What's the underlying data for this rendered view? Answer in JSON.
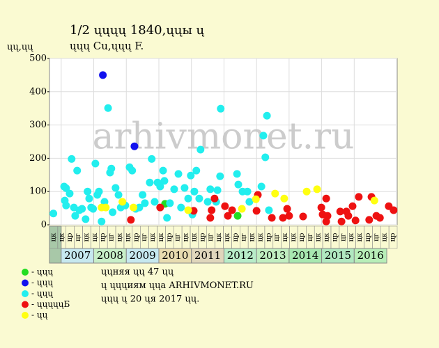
{
  "chart_data": {
    "type": "scatter",
    "title": "1/2 ųųųų 1840,ųųы ų",
    "subtitle": "ųųų Cu,ųųų F.",
    "y_label": "ųų,ųų",
    "watermark": "arhivmonet.ru",
    "xlim": [
      2006.64,
      2017.32
    ],
    "ylim": [
      0,
      500
    ],
    "yticks": [
      0,
      100,
      200,
      300,
      400,
      500
    ],
    "grid": true,
    "years": [
      {
        "label": "2007",
        "value": 2007,
        "color": "#c6e8ef"
      },
      {
        "label": "2008",
        "value": 2008,
        "color": "#c8efc8"
      },
      {
        "label": "2009",
        "value": 2009,
        "color": "#c6e8ef"
      },
      {
        "label": "2010",
        "value": 2010,
        "color": "#e8dcb0"
      },
      {
        "label": "2011",
        "value": 2011,
        "color": "#e0d6bc"
      },
      {
        "label": "2012",
        "value": 2012,
        "color": "#b8ecc8"
      },
      {
        "label": "2013",
        "value": 2013,
        "color": "#c0eec0"
      },
      {
        "label": "2014",
        "value": 2014,
        "color": "#a8e8b0"
      },
      {
        "label": "2015",
        "value": 2015,
        "color": "#b0e8c0"
      },
      {
        "label": "2016",
        "value": 2016,
        "color": "#b8eeb8"
      }
    ],
    "period_labels": [
      "цк",
      "цк",
      "цр",
      "цг",
      "цк",
      "цк",
      "цр",
      "цг",
      "цк",
      "цк",
      "цр",
      "цг",
      "цк",
      "цк",
      "цр",
      "цг",
      "цк",
      "цк",
      "цр",
      "цг",
      "цк",
      "цк",
      "цр",
      "цг",
      "цк",
      "цк",
      "цр",
      "цг",
      "цк",
      "цк",
      "цр",
      "цг",
      "цк",
      "цк",
      "цр",
      "цг",
      "цк",
      "цк",
      "цр",
      "цг",
      "цк",
      "цр"
    ],
    "series": [
      {
        "name": "- ųųų",
        "color": "#22dd22",
        "x": [
          2010.19,
          2012.42
        ],
        "values": [
          63,
          27
        ]
      },
      {
        "name": "- ųųų",
        "color": "#1111ee",
        "x": [
          2008.28,
          2009.25
        ],
        "values": [
          450,
          236
        ]
      },
      {
        "name": "- ųųų",
        "color": "#22eeee",
        "x": [
          2006.76,
          2007.09,
          2007.15,
          2007.26,
          2007.11,
          2007.15,
          2007.32,
          2007.39,
          2007.43,
          2007.49,
          2007.56,
          2007.64,
          2007.75,
          2007.81,
          2007.86,
          2007.92,
          2007.98,
          2008.05,
          2008.11,
          2008.16,
          2008.24,
          2008.33,
          2008.44,
          2008.5,
          2008.54,
          2008.58,
          2008.67,
          2008.76,
          2008.83,
          2008.97,
          2009.1,
          2009.18,
          2009.29,
          2009.4,
          2009.5,
          2009.57,
          2009.72,
          2009.78,
          2009.87,
          2009.96,
          2010.04,
          2010.13,
          2010.17,
          2010.25,
          2010.34,
          2010.47,
          2010.6,
          2010.68,
          2010.79,
          2010.9,
          2010.98,
          2011.03,
          2011.09,
          2011.15,
          2011.24,
          2011.28,
          2011.5,
          2011.58,
          2011.76,
          2011.8,
          2011.88,
          2011.9,
          2012.4,
          2012.44,
          2012.57,
          2012.72,
          2012.78,
          2013.15,
          2013.21,
          2013.27,
          2013.32,
          2013.38
        ],
        "values": [
          34,
          115,
          110,
          94,
          73,
          58,
          198,
          52,
          27,
          163,
          44,
          48,
          17,
          100,
          79,
          52,
          48,
          184,
          90,
          100,
          10,
          69,
          351,
          157,
          169,
          38,
          111,
          90,
          52,
          58,
          173,
          163,
          48,
          52,
          90,
          65,
          127,
          198,
          69,
          127,
          115,
          163,
          132,
          21,
          65,
          107,
          153,
          52,
          111,
          79,
          148,
          31,
          100,
          163,
          79,
          226,
          69,
          107,
          69,
          104,
          146,
          349,
          153,
          121,
          100,
          100,
          69,
          115,
          268,
          203,
          328,
          44
        ]
      },
      {
        "name": "- ųųųųųБ",
        "color": "#ee1111",
        "x": [
          2009.14,
          2010.04,
          2011.07,
          2011.58,
          2011.62,
          2011.71,
          2012.03,
          2012.12,
          2012.25,
          2013.0,
          2013.04,
          2013.47,
          2013.81,
          2013.94,
          2014.0,
          2014.43,
          2014.99,
          2015.03,
          2015.14,
          2015.18,
          2015.14,
          2015.57,
          2015.61,
          2015.76,
          2015.82,
          2015.95,
          2016.04,
          2016.14,
          2016.46,
          2016.53,
          2016.68,
          2016.79,
          2017.06,
          2017.21
        ],
        "values": [
          15,
          52,
          42,
          21,
          44,
          79,
          56,
          27,
          44,
          42,
          90,
          21,
          21,
          48,
          27,
          25,
          52,
          31,
          79,
          27,
          10,
          40,
          10,
          40,
          27,
          56,
          13,
          84,
          15,
          84,
          27,
          21,
          56,
          44
        ]
      },
      {
        "name": "- ųų",
        "color": "#ffff11",
        "x": [
          2008.24,
          2008.37,
          2008.88,
          2009.22,
          2010.9,
          2012.55,
          2012.98,
          2013.57,
          2013.85,
          2014.54,
          2014.86,
          2016.62
        ],
        "values": [
          52,
          52,
          69,
          52,
          44,
          48,
          77,
          94,
          79,
          100,
          107,
          73
        ]
      }
    ],
    "notes": [
      "ųųняя ųų 47 ųų",
      "ų ųųųиям ųųа ARHIVMONET.RU",
      "ųųų ų 20 ųя 2017 ųų."
    ]
  }
}
